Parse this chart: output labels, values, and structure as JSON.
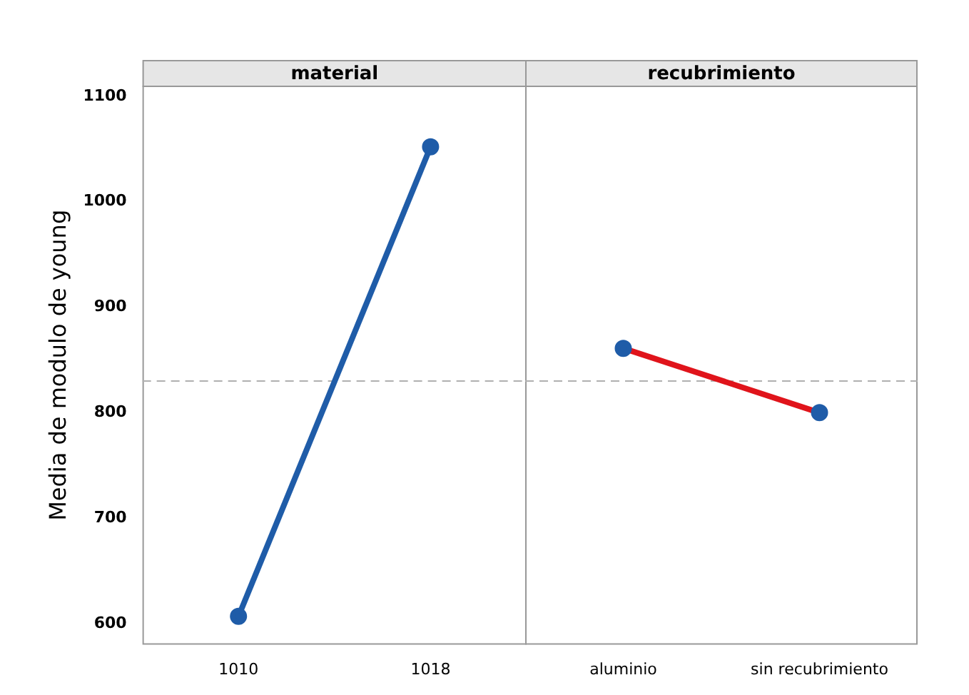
{
  "chart_data": [
    {
      "type": "line",
      "title": "material",
      "ylabel": "Media de modulo de young",
      "categories": [
        "1010",
        "1018"
      ],
      "series": [
        {
          "color": "#1f5ca8",
          "values": [
            607,
            1052
          ]
        }
      ],
      "ylim": [
        580,
        1110
      ],
      "yticks": [
        600,
        700,
        800,
        900,
        1000,
        1100
      ],
      "marker": "circle",
      "grid": false,
      "legend": false,
      "ref_lines": [
        {
          "axis": "y",
          "value": 830,
          "color": "#b0b0b0",
          "line_style": "dashed"
        }
      ]
    },
    {
      "type": "line",
      "title": "recubrimiento",
      "categories": [
        "aluminio",
        "sin recubrimiento"
      ],
      "series": [
        {
          "color": "#e0141b",
          "values": [
            861,
            800
          ]
        }
      ],
      "ylim": [
        580,
        1110
      ],
      "yticks": [
        600,
        700,
        800,
        900,
        1000,
        1100
      ],
      "tick_labels": "x",
      "marker": "circle",
      "grid": false,
      "legend": false,
      "ref_lines": [
        {
          "axis": "y",
          "value": 830,
          "color": "#b0b0b0",
          "line_style": "dashed"
        }
      ]
    }
  ]
}
